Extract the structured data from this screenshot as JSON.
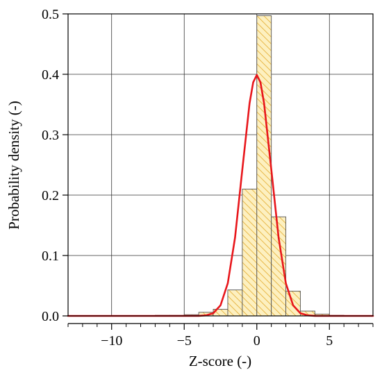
{
  "chart_data": {
    "type": "bar",
    "title": "",
    "xlabel": "Z-score (-)",
    "ylabel": "Probability density (-)",
    "xlim": [
      -13,
      8
    ],
    "ylim": [
      0,
      0.5
    ],
    "grid": true,
    "x_ticks": [
      -10,
      -5,
      0,
      5
    ],
    "x_tick_labels": [
      "−10",
      "−5",
      "0",
      "5"
    ],
    "y_ticks": [
      0,
      0.1,
      0.2,
      0.3,
      0.4,
      0.5
    ],
    "y_tick_labels": [
      "0.0",
      "0.1",
      "0.2",
      "0.3",
      "0.4",
      "0.5"
    ],
    "histogram": {
      "name": "",
      "fill_color": "#fdf0c0",
      "hatch_color": "#e8b84a",
      "edge_color": "#555555",
      "bins": [
        {
          "x0": -7,
          "x1": -6,
          "value": 0.001
        },
        {
          "x0": -6,
          "x1": -5,
          "value": 0.001
        },
        {
          "x0": -5,
          "x1": -4,
          "value": 0.002
        },
        {
          "x0": -4,
          "x1": -3,
          "value": 0.006
        },
        {
          "x0": -3,
          "x1": -2,
          "value": 0.011
        },
        {
          "x0": -2,
          "x1": -1,
          "value": 0.043
        },
        {
          "x0": -1,
          "x1": 0,
          "value": 0.21
        },
        {
          "x0": 0,
          "x1": 1,
          "value": 0.497
        },
        {
          "x0": 1,
          "x1": 2,
          "value": 0.164
        },
        {
          "x0": 2,
          "x1": 3,
          "value": 0.041
        },
        {
          "x0": 3,
          "x1": 4,
          "value": 0.008
        },
        {
          "x0": 4,
          "x1": 5,
          "value": 0.003
        },
        {
          "x0": 5,
          "x1": 6,
          "value": 0.001
        }
      ]
    },
    "series": [
      {
        "name": "",
        "type": "line",
        "color": "#e8161b",
        "x": [
          -13,
          -12,
          -11,
          -10,
          -9,
          -8,
          -7,
          -6,
          -5,
          -4,
          -3.5,
          -3,
          -2.5,
          -2,
          -1.5,
          -1,
          -0.5,
          -0.25,
          0,
          0.25,
          0.5,
          1,
          1.5,
          2,
          2.5,
          3,
          3.5,
          4,
          5,
          6,
          7,
          8
        ],
        "y": [
          0,
          0,
          0,
          0,
          0,
          0,
          0,
          0,
          0,
          0.0001,
          0.0009,
          0.0044,
          0.0175,
          0.054,
          0.1295,
          0.242,
          0.352,
          0.3867,
          0.3989,
          0.3867,
          0.352,
          0.242,
          0.1295,
          0.054,
          0.0175,
          0.0044,
          0.0009,
          0.0001,
          0,
          0,
          0,
          0
        ]
      }
    ]
  }
}
